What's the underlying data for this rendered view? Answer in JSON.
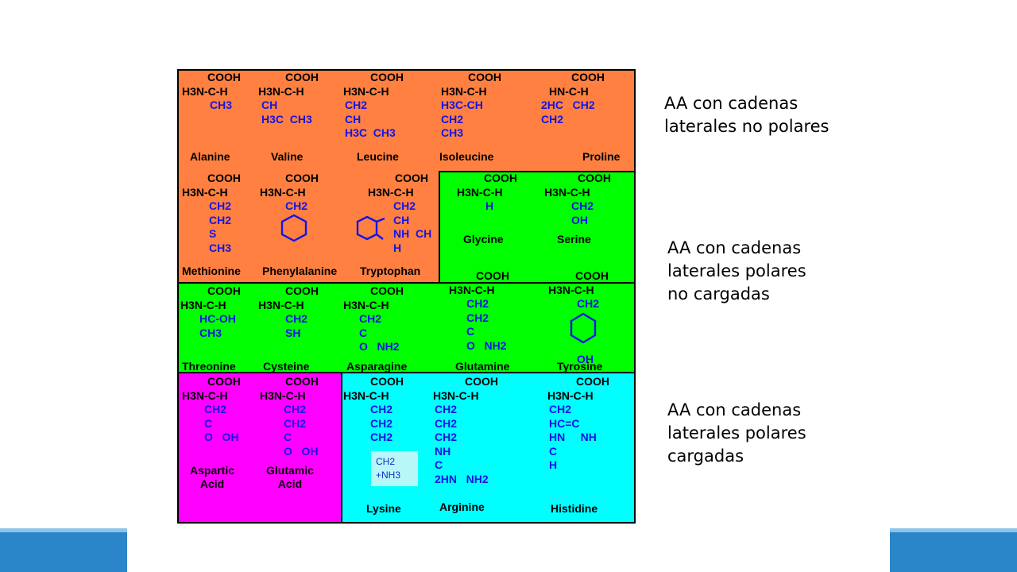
{
  "colors": {
    "nonpolar": "#ff8040",
    "polar_uncharged": "#00ff00",
    "acidic": "#ff00ff",
    "basic": "#00ffff",
    "structure_text": "#1414e6",
    "slide_accent": "#2a86c8"
  },
  "amino_acids": [
    {
      "name": "Alanine",
      "top": "COOH",
      "amine": "H3N-C-H",
      "chain": "CH3"
    },
    {
      "name": "Valine",
      "top": "COOH",
      "amine": "H3N-C-H",
      "chain": "CH\nH3C  CH3"
    },
    {
      "name": "Leucine",
      "top": "COOH",
      "amine": "H3N-C-H",
      "chain": "CH2\nCH\nH3C  CH3"
    },
    {
      "name": "Isoleucine",
      "top": "COOH",
      "amine": "H3N-C-H",
      "chain": "H3C-CH\nCH2\nCH3"
    },
    {
      "name": "Proline",
      "top": "COOH",
      "amine": "HN-C-H",
      "chain": "2HC   CH2\nCH2"
    },
    {
      "name": "Methionine",
      "top": "COOH",
      "amine": "H3N-C-H",
      "chain": "CH2\nCH2\nS\nCH3"
    },
    {
      "name": "Phenylalanine",
      "top": "COOH",
      "amine": "H3N-C-H",
      "chain": "CH2"
    },
    {
      "name": "Tryptophan",
      "top": "COOH",
      "amine": "H3N-C-H",
      "chain": "CH2\nCH\nNH  CH\nH"
    },
    {
      "name": "Glycine",
      "top": "COOH",
      "amine": "H3N-C-H",
      "chain": "H"
    },
    {
      "name": "Serine",
      "top": "COOH",
      "amine": "H3N-C-H",
      "chain": "CH2\nOH"
    },
    {
      "name": "Threonine",
      "top": "COOH",
      "amine": "H3N-C-H",
      "chain": "HC-OH\nCH3"
    },
    {
      "name": "Cysteine",
      "top": "COOH",
      "amine": "H3N-C-H",
      "chain": "CH2\nSH"
    },
    {
      "name": "Asparagine",
      "top": "COOH",
      "amine": "H3N-C-H",
      "chain": "CH2\nC\nO   NH2"
    },
    {
      "name": "Glutamine",
      "top": "COOH",
      "amine": "H3N-C-H",
      "chain": "CH2\nCH2\nC\nO   NH2"
    },
    {
      "name": "Tyrosine",
      "top": "COOH",
      "amine": "H3N-C-H",
      "chain": "CH2\n\n\n\nOH"
    },
    {
      "name": "Aspartic\nAcid",
      "top": "COOH",
      "amine": "H3N-C-H",
      "chain": "CH2\nC\nO   OH"
    },
    {
      "name": "Glutamic\nAcid",
      "top": "COOH",
      "amine": "H3N-C-H",
      "chain": "CH2\nCH2\nC\nO   OH"
    },
    {
      "name": "Lysine",
      "top": "COOH",
      "amine": "H3N-C-H",
      "chain": "CH2\nCH2\nCH2"
    },
    {
      "name": "Arginine",
      "top": "COOH",
      "amine": "H3N-C-H",
      "chain": "CH2\nCH2\nCH2\nNH\nC\n2HN   NH2"
    },
    {
      "name": "Histidine",
      "top": "COOH",
      "amine": "H3N-C-H",
      "chain": "CH2\nHC=C\nHN     NH\nC\nH"
    }
  ],
  "lysine_overlay": "CH2\n+NH3",
  "labels": {
    "nonpolar": "AA con cadenas\nlaterales no polares",
    "polar_uncharged": "AA con cadenas\nlaterales polares\nno cargadas",
    "polar_charged": "AA con cadenas\nlaterales polares\ncargadas"
  }
}
